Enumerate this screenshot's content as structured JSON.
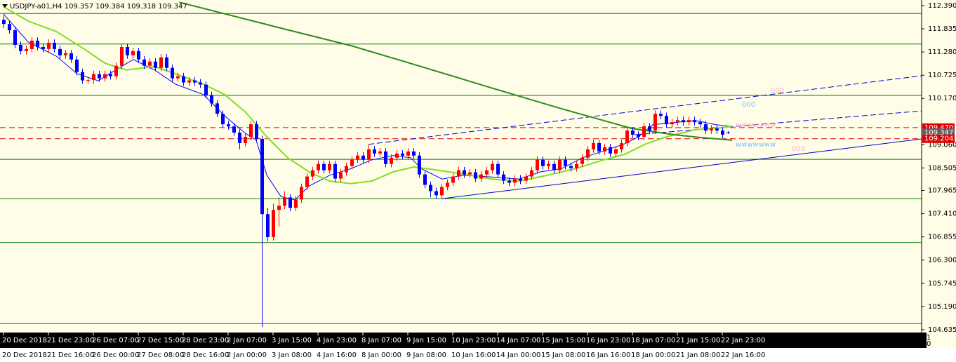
{
  "chart_data": {
    "type": "candlestick",
    "title": "USDJPY-a01,H4  109.357 109.384 109.318 109.347",
    "ylim": [
      104.6,
      112.49
    ],
    "xlim": [
      -0.625,
      163.5
    ],
    "yticks": [
      {
        "value": 112.39,
        "label": "112.390"
      },
      111.835,
      {
        "value": 111.28,
        "label": "111.280"
      },
      110.725,
      {
        "value": 110.17,
        "label": "110.170"
      },
      {
        "value": 109.06,
        "label": "109.060"
      },
      108.505,
      107.965,
      {
        "value": 107.41,
        "label": "107.410"
      },
      106.855,
      {
        "value": 106.3,
        "label": "106.300"
      },
      105.745,
      {
        "value": 105.19,
        "label": "105.190"
      },
      104.635
    ],
    "xticks": [
      {
        "value": 0,
        "label": "20 Dec 2018"
      },
      {
        "value": 8,
        "label": "21 Dec 23:00"
      },
      {
        "value": 16,
        "label": "26 Dec 07:00"
      },
      {
        "value": 24,
        "label": "27 Dec 15:00"
      },
      {
        "value": 32,
        "label": "28 Dec 23:00"
      },
      {
        "value": 40,
        "label": "2 Jan 07:00"
      },
      {
        "value": 48,
        "label": "3 Jan 15:00"
      },
      {
        "value": 56,
        "label": "4 Jan 23:00"
      },
      {
        "value": 64,
        "label": "8 Jan 07:00"
      },
      {
        "value": 72,
        "label": "9 Jan 15:00"
      },
      {
        "value": 80,
        "label": "10 Jan 23:00"
      },
      {
        "value": 88,
        "label": "14 Jan 07:00"
      },
      {
        "value": 96,
        "label": "15 Jan 15:00"
      },
      {
        "value": 104,
        "label": "16 Jan 23:00"
      },
      {
        "value": 112,
        "label": "18 Jan 07:00"
      },
      {
        "value": 120,
        "label": "21 Jan 15:00"
      },
      {
        "value": 128,
        "label": "22 Jan 23:00"
      }
    ],
    "xticks2": [
      {
        "value": 0,
        "label": "20 Dec 2018"
      },
      {
        "value": 8,
        "label": "21 Dec 16:00"
      },
      {
        "value": 16,
        "label": "26 Dec 00:00"
      },
      {
        "value": 24,
        "label": "27 Dec 08:00"
      },
      {
        "value": 32,
        "label": "28 Dec 16:00"
      },
      {
        "value": 40,
        "label": "2 Jan 00:00"
      },
      {
        "value": 48,
        "label": "3 Jan 08:00"
      },
      {
        "value": 56,
        "label": "4 Jan 16:00"
      },
      {
        "value": 64,
        "label": "8 Jan 00:00"
      },
      {
        "value": 72,
        "label": "9 Jan 08:00"
      },
      {
        "value": 80,
        "label": "10 Jan 16:00"
      },
      {
        "value": 88,
        "label": "14 Jan 00:00"
      },
      {
        "value": 96,
        "label": "15 Jan 08:00"
      },
      {
        "value": 104,
        "label": "16 Jan 16:00"
      },
      {
        "value": 112,
        "label": "18 Jan 00:00"
      },
      {
        "value": 120,
        "label": "21 Jan 08:00"
      },
      {
        "value": 128,
        "label": "22 Jan 16:00"
      }
    ],
    "up_color": "#ff0000",
    "down_color": "#0000ff",
    "candles": [
      [
        112.05,
        112.15,
        111.85,
        111.95
      ],
      [
        111.95,
        112.03,
        111.72,
        111.8
      ],
      [
        111.8,
        111.88,
        111.37,
        111.45
      ],
      [
        111.45,
        111.53,
        111.22,
        111.3
      ],
      [
        111.3,
        111.43,
        111.22,
        111.35
      ],
      [
        111.35,
        111.63,
        111.27,
        111.55
      ],
      [
        111.55,
        111.63,
        111.32,
        111.4
      ],
      [
        111.4,
        111.48,
        111.27,
        111.35
      ],
      [
        111.35,
        111.58,
        111.27,
        111.5
      ],
      [
        111.5,
        111.58,
        111.27,
        111.35
      ],
      [
        111.35,
        111.43,
        111.12,
        111.2
      ],
      [
        111.2,
        111.33,
        111.12,
        111.25
      ],
      [
        111.25,
        111.33,
        111.02,
        111.1
      ],
      [
        111.1,
        111.18,
        110.72,
        110.8
      ],
      [
        110.8,
        110.88,
        110.52,
        110.6
      ],
      [
        110.6,
        110.68,
        110.52,
        110.61
      ],
      [
        110.61,
        110.83,
        110.52,
        110.75
      ],
      [
        110.75,
        110.83,
        110.57,
        110.65
      ],
      [
        110.65,
        110.83,
        110.57,
        110.75
      ],
      [
        110.75,
        110.83,
        110.62,
        110.7
      ],
      [
        110.7,
        111.03,
        110.62,
        110.95
      ],
      [
        110.95,
        111.48,
        110.87,
        111.4
      ],
      [
        111.4,
        111.48,
        111.12,
        111.2
      ],
      [
        111.2,
        111.38,
        111.12,
        111.3
      ],
      [
        111.3,
        111.38,
        111.02,
        111.1
      ],
      [
        111.1,
        111.18,
        110.87,
        110.95
      ],
      [
        110.95,
        111.13,
        110.87,
        111.05
      ],
      [
        111.05,
        111.13,
        110.82,
        110.9
      ],
      [
        110.9,
        111.23,
        110.82,
        111.15
      ],
      [
        111.15,
        111.23,
        110.82,
        110.9
      ],
      [
        110.9,
        110.98,
        110.57,
        110.65
      ],
      [
        110.65,
        110.78,
        110.57,
        110.7
      ],
      [
        110.7,
        110.78,
        110.47,
        110.55
      ],
      [
        110.55,
        110.68,
        110.47,
        110.6
      ],
      [
        110.6,
        110.68,
        110.47,
        110.55
      ],
      [
        110.55,
        110.63,
        110.42,
        110.5
      ],
      [
        110.5,
        110.58,
        110.17,
        110.25
      ],
      [
        110.25,
        110.33,
        109.97,
        110.05
      ],
      [
        110.05,
        110.13,
        109.72,
        109.8
      ],
      [
        109.8,
        109.88,
        109.47,
        109.55
      ],
      [
        109.55,
        109.63,
        109.42,
        109.5
      ],
      [
        109.5,
        109.58,
        109.27,
        109.35
      ],
      [
        109.35,
        109.43,
        108.95,
        109.1
      ],
      [
        109.1,
        109.33,
        109.02,
        109.25
      ],
      [
        109.25,
        109.63,
        109.17,
        109.55
      ],
      [
        109.55,
        109.63,
        109.12,
        109.2
      ],
      [
        109.2,
        109.28,
        104.7,
        107.4
      ],
      [
        107.4,
        107.55,
        106.75,
        106.85
      ],
      [
        106.85,
        107.65,
        106.77,
        107.5
      ],
      [
        107.5,
        107.8,
        107.1,
        107.6
      ],
      [
        107.6,
        107.95,
        107.52,
        107.8
      ],
      [
        107.8,
        107.88,
        107.47,
        107.55
      ],
      [
        107.55,
        107.83,
        107.47,
        107.75
      ],
      [
        107.75,
        108.13,
        107.67,
        108.05
      ],
      [
        108.05,
        108.38,
        107.97,
        108.3
      ],
      [
        108.3,
        108.53,
        108.22,
        108.45
      ],
      [
        108.45,
        108.68,
        108.37,
        108.6
      ],
      [
        108.6,
        108.68,
        108.37,
        108.45
      ],
      [
        108.45,
        108.68,
        108.37,
        108.6
      ],
      [
        108.6,
        108.68,
        108.17,
        108.25
      ],
      [
        108.25,
        108.48,
        108.17,
        108.4
      ],
      [
        108.4,
        108.63,
        108.32,
        108.55
      ],
      [
        108.55,
        108.78,
        108.47,
        108.7
      ],
      [
        108.7,
        108.88,
        108.62,
        108.8
      ],
      [
        108.8,
        108.88,
        108.62,
        108.7
      ],
      [
        108.7,
        109.07,
        108.62,
        108.95
      ],
      [
        108.95,
        109.03,
        108.77,
        108.85
      ],
      [
        108.85,
        108.98,
        108.77,
        108.9
      ],
      [
        108.9,
        108.98,
        108.52,
        108.6
      ],
      [
        108.6,
        108.83,
        108.52,
        108.75
      ],
      [
        108.75,
        108.93,
        108.67,
        108.85
      ],
      [
        108.85,
        108.93,
        108.72,
        108.8
      ],
      [
        108.8,
        108.98,
        108.72,
        108.9
      ],
      [
        108.9,
        108.98,
        108.72,
        108.8
      ],
      [
        108.8,
        108.88,
        108.27,
        108.35
      ],
      [
        108.35,
        108.43,
        108.02,
        108.1
      ],
      [
        108.1,
        108.18,
        107.8,
        107.95
      ],
      [
        107.95,
        108.03,
        107.77,
        107.85
      ],
      [
        107.85,
        108.13,
        107.77,
        108.05
      ],
      [
        108.05,
        108.23,
        107.97,
        108.15
      ],
      [
        108.15,
        108.38,
        108.07,
        108.3
      ],
      [
        108.3,
        108.53,
        108.22,
        108.45
      ],
      [
        108.45,
        108.53,
        108.27,
        108.35
      ],
      [
        108.35,
        108.48,
        108.27,
        108.4
      ],
      [
        108.4,
        108.48,
        108.17,
        108.25
      ],
      [
        108.25,
        108.43,
        108.17,
        108.35
      ],
      [
        108.35,
        108.53,
        108.27,
        108.45
      ],
      [
        108.45,
        108.68,
        108.37,
        108.6
      ],
      [
        108.6,
        108.68,
        108.27,
        108.35
      ],
      [
        108.35,
        108.43,
        108.12,
        108.2
      ],
      [
        108.2,
        108.28,
        108.07,
        108.15
      ],
      [
        108.15,
        108.33,
        108.07,
        108.25
      ],
      [
        108.25,
        108.33,
        108.12,
        108.2
      ],
      [
        108.2,
        108.38,
        108.12,
        108.3
      ],
      [
        108.3,
        108.53,
        108.22,
        108.45
      ],
      [
        108.45,
        108.78,
        108.37,
        108.7
      ],
      [
        108.7,
        108.78,
        108.47,
        108.55
      ],
      [
        108.55,
        108.68,
        108.47,
        108.6
      ],
      [
        108.6,
        108.68,
        108.37,
        108.45
      ],
      [
        108.45,
        108.78,
        108.37,
        108.7
      ],
      [
        108.7,
        108.78,
        108.47,
        108.55
      ],
      [
        108.55,
        108.63,
        108.42,
        108.5
      ],
      [
        108.5,
        108.68,
        108.42,
        108.6
      ],
      [
        108.6,
        108.83,
        108.52,
        108.75
      ],
      [
        108.75,
        109.03,
        108.67,
        108.95
      ],
      [
        108.95,
        109.18,
        108.87,
        109.1
      ],
      [
        109.1,
        109.18,
        108.82,
        108.9
      ],
      [
        108.9,
        109.08,
        108.82,
        109.0
      ],
      [
        109.0,
        109.08,
        108.77,
        108.85
      ],
      [
        108.85,
        109.03,
        108.77,
        108.95
      ],
      [
        108.95,
        109.18,
        108.87,
        109.1
      ],
      [
        109.1,
        109.48,
        109.02,
        109.4
      ],
      [
        109.4,
        109.48,
        109.22,
        109.3
      ],
      [
        109.3,
        109.38,
        109.17,
        109.25
      ],
      [
        109.25,
        109.58,
        109.17,
        109.5
      ],
      [
        109.5,
        109.58,
        109.32,
        109.4
      ],
      [
        109.4,
        109.88,
        109.32,
        109.8
      ],
      [
        109.8,
        109.88,
        109.67,
        109.75
      ],
      [
        109.75,
        109.83,
        109.47,
        109.55
      ],
      [
        109.55,
        109.68,
        109.47,
        109.6
      ],
      [
        109.6,
        109.73,
        109.52,
        109.65
      ],
      [
        109.65,
        109.73,
        109.52,
        109.6
      ],
      [
        109.6,
        109.73,
        109.52,
        109.65
      ],
      [
        109.65,
        109.73,
        109.52,
        109.6
      ],
      [
        109.6,
        109.68,
        109.47,
        109.55
      ],
      [
        109.55,
        109.63,
        109.32,
        109.4
      ],
      [
        109.4,
        109.53,
        109.32,
        109.45
      ],
      [
        109.45,
        109.53,
        109.32,
        109.4
      ],
      [
        109.4,
        109.48,
        109.22,
        109.3
      ],
      [
        109.357,
        109.384,
        109.318,
        109.347
      ]
    ],
    "moving_averages": [
      {
        "color": "#0000ff",
        "width": 1,
        "x": [
          0,
          4.4,
          9.4,
          13.1,
          16.9,
          20,
          23.1,
          26.9,
          30.6,
          35.6,
          39.4,
          43.1,
          45,
          46.9,
          49.4,
          51.9,
          54.4,
          58.1,
          61.9,
          65.6,
          69.4,
          72.5,
          74.4,
          78.1,
          81.9,
          86.9,
          91.9,
          95.6,
          99.4,
          103.1,
          106.9,
          110.6,
          113.1,
          115.6,
          119.4,
          123.1,
          126.9,
          129.4
        ],
        "values": [
          112.19,
          111.52,
          111.18,
          110.76,
          110.59,
          110.85,
          111.1,
          110.85,
          110.51,
          110.26,
          109.75,
          109.33,
          109.17,
          108.33,
          107.82,
          107.74,
          108.07,
          108.33,
          108.49,
          108.7,
          108.8,
          108.75,
          108.49,
          108.24,
          108.33,
          108.29,
          108.24,
          108.41,
          108.49,
          108.75,
          108.91,
          109.08,
          109.25,
          109.54,
          109.59,
          109.64,
          109.54,
          109.5
        ]
      },
      {
        "color": "#7fe020",
        "width": 2,
        "x": [
          0,
          4.4,
          9.4,
          14.4,
          18.1,
          21.9,
          26.9,
          30.6,
          35.6,
          39.4,
          43.1,
          46.9,
          50.6,
          54.4,
          58.1,
          61.9,
          65.6,
          69.4,
          73.1,
          76.9,
          81.9,
          86.9,
          91.9,
          96.9,
          101.9,
          106.9,
          110.6,
          114.4,
          118.1,
          123.1,
          128.1,
          129.75
        ],
        "values": [
          112.36,
          112.02,
          111.77,
          111.35,
          111.01,
          110.85,
          110.93,
          110.76,
          110.51,
          110.26,
          109.84,
          109.25,
          108.75,
          108.41,
          108.19,
          108.13,
          108.19,
          108.41,
          108.53,
          108.46,
          108.36,
          108.24,
          108.19,
          108.33,
          108.49,
          108.7,
          108.83,
          109.08,
          109.25,
          109.42,
          109.47,
          109.5
        ]
      },
      {
        "color": "#2e8b20",
        "width": 2,
        "x": [
          31.3,
          49.4,
          61.9,
          74.4,
          86.9,
          99.4,
          111.9,
          119.4,
          124.4,
          129.75
        ],
        "values": [
          112.47,
          111.85,
          111.43,
          110.93,
          110.42,
          109.92,
          109.45,
          109.3,
          109.23,
          109.17
        ]
      }
    ],
    "levels": [
      112.2,
      111.47,
      110.24,
      108.71,
      107.77,
      106.72,
      104.78
    ],
    "level_color": "#008000",
    "trendlines": [
      {
        "color": "#0000cd",
        "dash": false,
        "x": [
          78.1,
          163.5
        ],
        "values": [
          107.77,
          109.2
        ]
      },
      {
        "color": "#0000cd",
        "dash": true,
        "x": [
          65,
          163.5
        ],
        "values": [
          109.07,
          110.71
        ]
      },
      {
        "color": "#0000cd",
        "dash": true,
        "x": [
          112.5,
          163.5
        ],
        "values": [
          109.3,
          109.87
        ]
      }
    ],
    "dashed_levels": [
      {
        "value": 109.47,
        "label": "109.470"
      },
      {
        "value": 109.204,
        "label": "109.204"
      }
    ],
    "dashed_color": "#e00000",
    "bid_label": {
      "value": 109.347,
      "label": "109.347"
    },
    "annotations": [
      "000",
      "000",
      "wwwwwww",
      "wwwwwww",
      "000"
    ],
    "corner": [
      "1",
      "0"
    ]
  }
}
